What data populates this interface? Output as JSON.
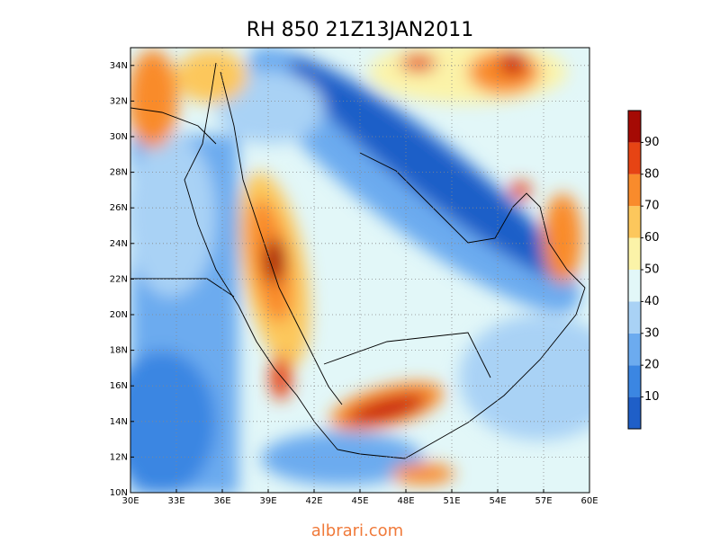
{
  "title": "RH 850 21Z13JAN2011",
  "x_labels": [
    "30E",
    "33E",
    "36E",
    "39E",
    "42E",
    "45E",
    "48E",
    "51E",
    "54E",
    "57E",
    "60E"
  ],
  "y_labels": [
    "10N",
    "12N",
    "14N",
    "16N",
    "18N",
    "20N",
    "22N",
    "24N",
    "26N",
    "28N",
    "30N",
    "32N",
    "34N"
  ],
  "colorbar": {
    "labels": [
      10,
      20,
      30,
      40,
      50,
      60,
      70,
      80,
      90
    ],
    "colors": [
      "#1f5fc8",
      "#3b86e2",
      "#6cabef",
      "#a9d2f5",
      "#e2f7f8",
      "#fbf3a8",
      "#fcc75c",
      "#f98b2c",
      "#e64414",
      "#a50a04"
    ]
  },
  "footer": "albrari.com"
}
